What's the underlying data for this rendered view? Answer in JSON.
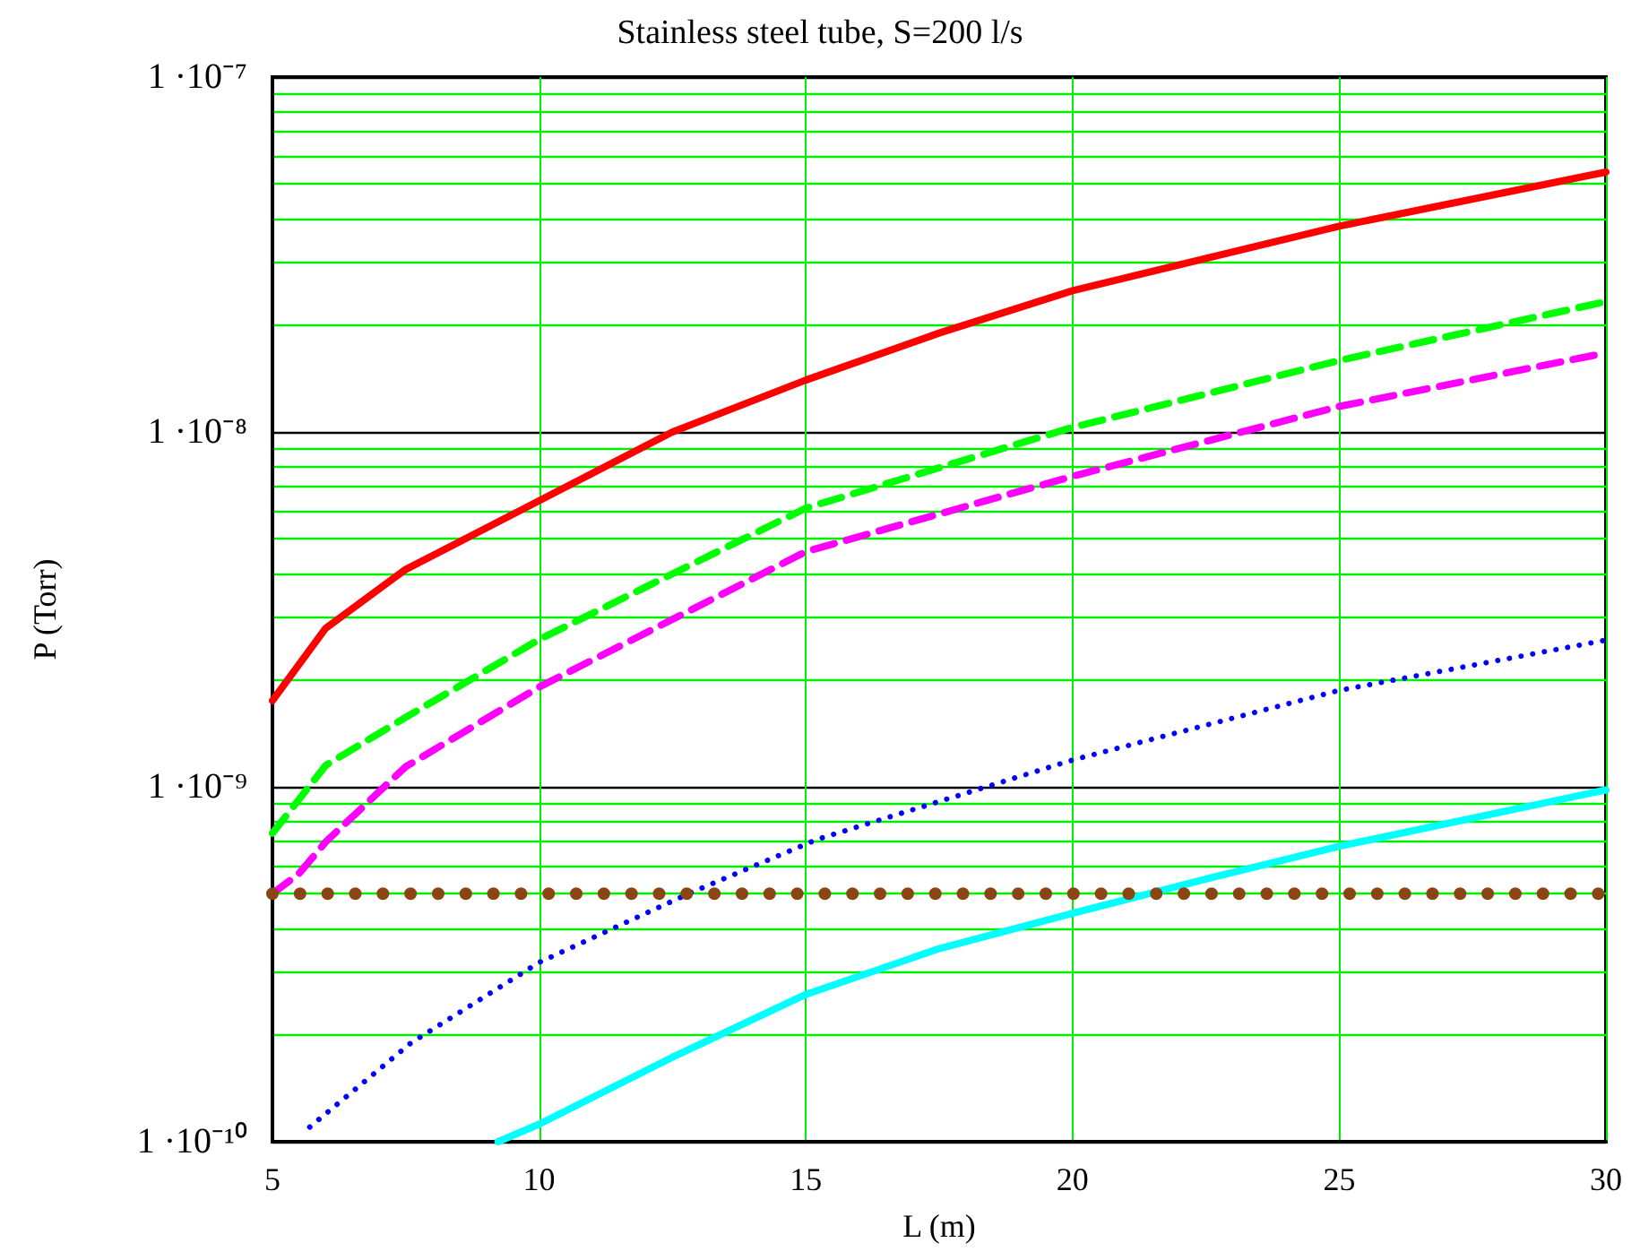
{
  "chart_data": {
    "type": "line",
    "title": "Stainless steel tube, S=200 l/s",
    "xlabel": "L (m)",
    "ylabel": "P (Torr)",
    "log": "y",
    "grid": true,
    "marker": "none",
    "xlim": [
      5,
      30
    ],
    "xticks": [
      5,
      10,
      15,
      20,
      25,
      30
    ],
    "ylim": [
      1e-10,
      1e-07
    ],
    "yticks": [
      {
        "value": 1e-10,
        "label": "1 ·10⁻¹⁰"
      },
      {
        "value": 2e-10,
        "label": null
      },
      {
        "value": 3e-10,
        "label": null
      },
      {
        "value": 4e-10,
        "label": null
      },
      {
        "value": 5e-10,
        "label": null
      },
      {
        "value": 6e-10,
        "label": null
      },
      {
        "value": 7e-10,
        "label": null
      },
      {
        "value": 8e-10,
        "label": null
      },
      {
        "value": 9e-10,
        "label": null
      },
      {
        "value": 1e-09,
        "label": "1 ·10⁻⁹"
      },
      {
        "value": 2e-09,
        "label": null
      },
      {
        "value": 3e-09,
        "label": null
      },
      {
        "value": 4e-09,
        "label": null
      },
      {
        "value": 5e-09,
        "label": null
      },
      {
        "value": 6e-09,
        "label": null
      },
      {
        "value": 7e-09,
        "label": null
      },
      {
        "value": 8e-09,
        "label": null
      },
      {
        "value": 9e-09,
        "label": null
      },
      {
        "value": 1e-08,
        "label": "1 ·10⁻⁸"
      },
      {
        "value": 2e-08,
        "label": null
      },
      {
        "value": 3e-08,
        "label": null
      },
      {
        "value": 4e-08,
        "label": null
      },
      {
        "value": 5e-08,
        "label": null
      },
      {
        "value": 6e-08,
        "label": null
      },
      {
        "value": 7e-08,
        "label": null
      },
      {
        "value": 8e-08,
        "label": null
      },
      {
        "value": 9e-08,
        "label": null
      },
      {
        "value": 1e-07,
        "label": "1 ·10⁻⁷"
      }
    ],
    "series": [
      {
        "color": "#ff0000",
        "line_style": "solid",
        "x": [
          5,
          6,
          7.5,
          10,
          12.5,
          15,
          17.5,
          20,
          25,
          30
        ],
        "values": [
          1.75e-09,
          2.8e-09,
          4.1e-09,
          6.4e-09,
          1e-08,
          1.4e-08,
          1.9e-08,
          2.5e-08,
          3.8e-08,
          5.4e-08
        ]
      },
      {
        "color": "#00ff00",
        "line_style": "dashed",
        "x": [
          5,
          6,
          7.5,
          10,
          15,
          20,
          25,
          30
        ],
        "values": [
          7.4e-10,
          1.15e-09,
          1.57e-09,
          2.6e-09,
          6.1e-09,
          1.03e-08,
          1.59e-08,
          2.33e-08
        ]
      },
      {
        "color": "#ff00ff",
        "line_style": "dashed",
        "x": [
          5,
          5.5,
          6,
          7.5,
          10,
          15,
          20,
          25,
          30
        ],
        "values": [
          5e-10,
          5.7e-10,
          7e-10,
          1.14e-09,
          1.91e-09,
          4.6e-09,
          7.5e-09,
          1.18e-08,
          1.67e-08
        ]
      },
      {
        "color": "#0000ff",
        "line_style": "dotted",
        "x": [
          5.7,
          7.6,
          10,
          12.8,
          15.2,
          20,
          25,
          30
        ],
        "values": [
          1.1e-10,
          1.9e-10,
          3.2e-10,
          5e-10,
          7.1e-10,
          1.19e-09,
          1.87e-09,
          2.59e-09
        ]
      },
      {
        "color": "#00ffff",
        "line_style": "solid",
        "x": [
          9.23,
          10,
          12.5,
          15,
          17.5,
          20,
          22.5,
          25,
          30
        ],
        "values": [
          1e-10,
          1.12e-10,
          1.73e-10,
          2.6e-10,
          3.5e-10,
          4.4e-10,
          5.5e-10,
          6.8e-10,
          9.8e-10
        ]
      },
      {
        "color": "#8b4513",
        "line_style": "dotted",
        "x": [
          5,
          30
        ],
        "values": [
          5e-10,
          5e-10
        ]
      }
    ]
  }
}
